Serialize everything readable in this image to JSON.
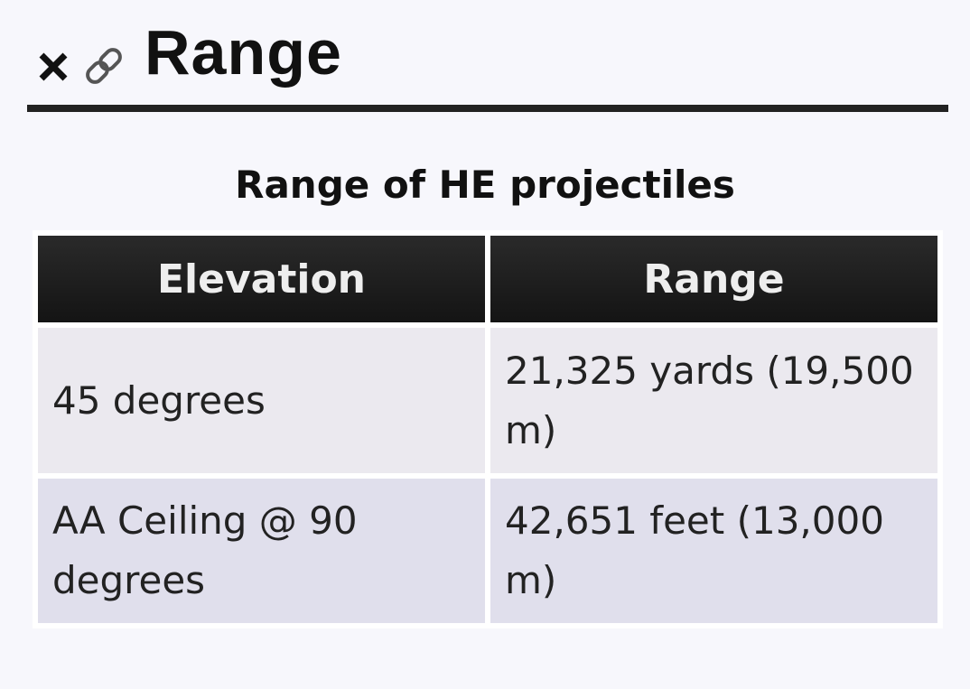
{
  "header": {
    "title": "Range"
  },
  "table": {
    "caption": "Range of HE projectiles",
    "columns": [
      "Elevation",
      "Range"
    ],
    "rows": [
      [
        "45 degrees",
        "21,325 yards (19,500 m)"
      ],
      [
        "AA Ceiling @ 90 degrees",
        "42,651 feet (13,000 m)"
      ]
    ]
  }
}
